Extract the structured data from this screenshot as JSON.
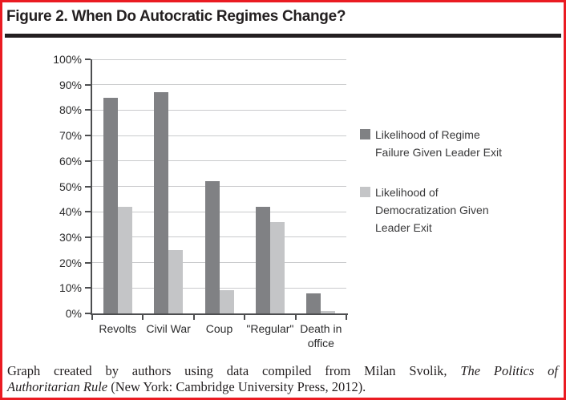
{
  "figure": {
    "title": "Figure 2. When Do Autocratic Regimes Change?"
  },
  "chart_data": {
    "type": "bar",
    "title": "Figure 2. When Do Autocratic Regimes Change?",
    "categories": [
      "Revolts",
      "Civil War",
      "Coup",
      "\"Regular\"",
      "Death in\noffice"
    ],
    "series": [
      {
        "key": "regime-failure",
        "name": "Likelihood of Regime Failure Given Leader Exit",
        "values": [
          85,
          87,
          52,
          42,
          8
        ],
        "color": "#808184"
      },
      {
        "key": "democratization",
        "name": "Likelihood of Democratization Given Leader Exit",
        "values": [
          42,
          25,
          9,
          36,
          1
        ],
        "color": "#c4c5c7"
      }
    ],
    "xlabel": "",
    "ylabel": "",
    "ylim": [
      0,
      100
    ],
    "ytick_step": 10,
    "ytick_suffix": "%",
    "grid": true,
    "legend_position": "right"
  },
  "caption": {
    "lines": [
      {
        "segments": [
          {
            "text": "Graph created by authors using data compiled from Milan Svolik, ",
            "italic": false
          },
          {
            "text": "The Politics of",
            "italic": true
          }
        ]
      },
      {
        "segments": [
          {
            "text": "Authoritarian Rule",
            "italic": true
          },
          {
            "text": " (New York: Cambridge University Press, 2012).",
            "italic": false
          }
        ]
      }
    ]
  },
  "colors": {
    "page_border_red": "#ea1b22",
    "title_black": "#231f20",
    "dark_bar": "#808184",
    "light_bar": "#c4c5c7",
    "gridline": "#c9cacc",
    "axis": "#4d4e50",
    "label_text": "#2b2b2c"
  }
}
